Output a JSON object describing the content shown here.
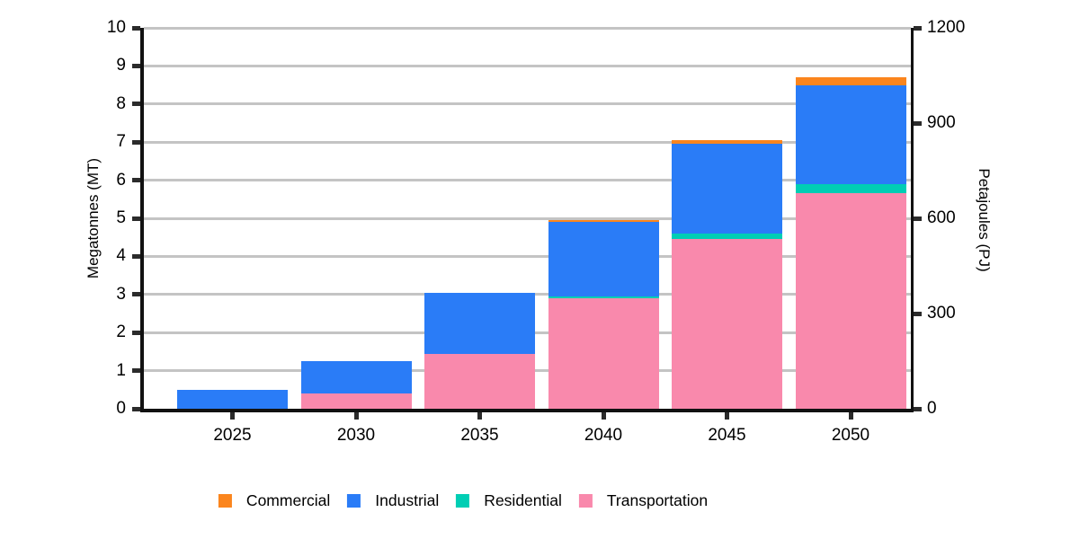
{
  "chart_data": {
    "type": "bar",
    "stacked": true,
    "title": "",
    "categories": [
      "2025",
      "2030",
      "2035",
      "2040",
      "2045",
      "2050"
    ],
    "series": [
      {
        "name": "Commercial",
        "color": "#FB851D",
        "values": [
          0,
          0,
          0,
          0.05,
          0.1,
          0.2
        ]
      },
      {
        "name": "Industrial",
        "color": "#2A7CF7",
        "values": [
          0.5,
          0.85,
          1.6,
          1.95,
          2.35,
          2.6
        ]
      },
      {
        "name": "Residential",
        "color": "#00CEB4",
        "values": [
          0,
          0,
          0,
          0.05,
          0.15,
          0.25
        ]
      },
      {
        "name": "Transportation",
        "color": "#F989AC",
        "values": [
          0,
          0.4,
          1.45,
          2.9,
          4.45,
          5.65
        ]
      }
    ],
    "stack_order_bottom_to_top": [
      "Transportation",
      "Residential",
      "Industrial",
      "Commercial"
    ],
    "totals": [
      0.5,
      1.25,
      3.05,
      4.95,
      7.05,
      8.7
    ],
    "left_axis": {
      "title": "Megatonnes (MT)",
      "min": 0,
      "max": 10,
      "ticks": [
        0,
        1,
        2,
        3,
        4,
        5,
        6,
        7,
        8,
        9,
        10
      ]
    },
    "right_axis": {
      "title": "Petajoules (PJ)",
      "min": 0,
      "max": 1200,
      "ticks": [
        0,
        300,
        600,
        900,
        1200
      ]
    },
    "x_axis": {
      "tick_labels": [
        "2025",
        "2030",
        "2035",
        "2040",
        "2045",
        "2050"
      ]
    },
    "gridline_values": [
      1,
      2,
      3,
      4,
      5,
      6,
      7,
      8,
      9,
      10
    ],
    "grid": "horizontal",
    "legend": {
      "position": "bottom",
      "entries": [
        "Commercial",
        "Industrial",
        "Residential",
        "Transportation"
      ]
    }
  },
  "colors": {
    "background": "#FFFFFF",
    "gridline": "#C4C4C4",
    "axis": "#111111",
    "tick": "#2B2B2B",
    "text": "#000000"
  }
}
